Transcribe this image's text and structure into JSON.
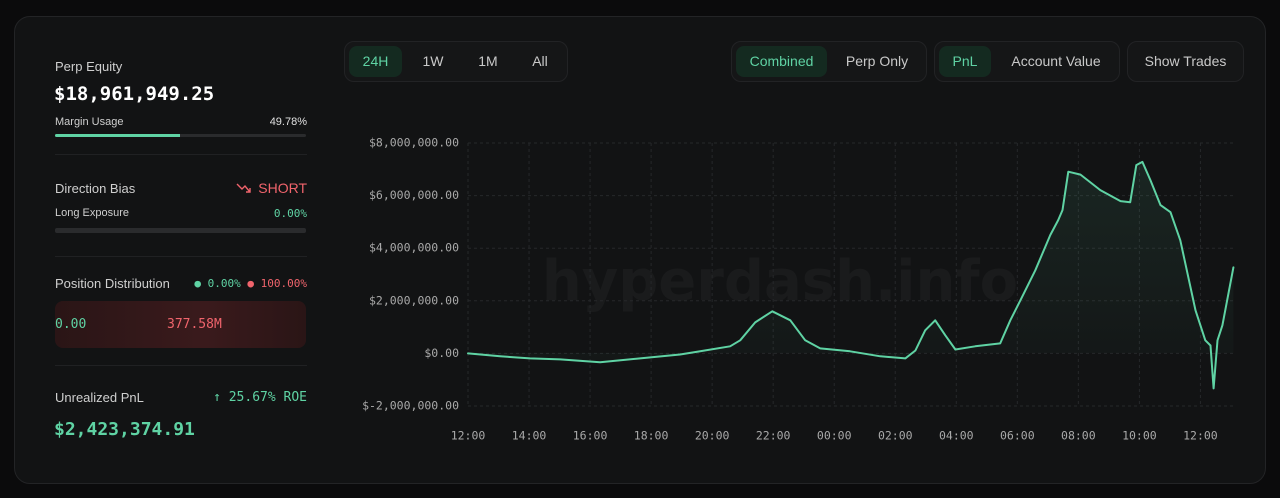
{
  "summary": {
    "equity_label": "Perp Equity",
    "equity_value": "$18,961,949.25",
    "margin_label": "Margin Usage",
    "margin_usage": {
      "value": 49.78,
      "label": "49.78%"
    },
    "bias_label": "Direction Bias",
    "bias_value": "SHORT",
    "long_exposure_label": "Long Exposure",
    "long_exposure": {
      "value": 0,
      "label": "0.00%"
    },
    "distribution_label": "Position Distribution",
    "long_share": {
      "value": 0,
      "label": "0.00%"
    },
    "short_share": {
      "value": 100,
      "label": "100.00%"
    },
    "long_amount": "0.00",
    "short_amount": "377.58M",
    "pnl_label": "Unrealized PnL",
    "roe": "25.67% ROE",
    "pnl_value": "$2,423,374.91"
  },
  "tabs": {
    "range": [
      "24H",
      "1W",
      "1M",
      "All"
    ],
    "scope": [
      "Combined",
      "Perp Only"
    ],
    "metric": [
      "PnL",
      "Account Value"
    ],
    "trades": "Show Trades"
  },
  "chart_data": {
    "type": "line",
    "watermark": "hyperdash.info",
    "color": "#5fd3a4",
    "grid": true,
    "x": [
      0,
      1.05,
      2.03,
      3.02,
      4.33,
      5.64,
      6.95,
      7.61,
      8.59,
      8.92,
      9.41,
      9.97,
      10.56,
      11.05,
      11.54,
      12.52,
      13.51,
      14.33,
      14.66,
      14.98,
      15.31,
      15.64,
      15.97,
      16.62,
      17.44,
      17.77,
      18.1,
      18.59,
      19.08,
      19.34,
      19.48,
      19.67,
      20.07,
      20.72,
      21.38,
      21.7,
      21.9,
      22.1,
      22.36,
      22.69,
      23.02,
      23.34,
      23.84,
      24.16,
      24.33,
      24.43,
      24.56,
      24.72,
      25.08
    ],
    "values": [
      0,
      -110000,
      -190000,
      -230000,
      -340000,
      -190000,
      -40000,
      80000,
      270000,
      500000,
      1180000,
      1600000,
      1260000,
      500000,
      190000,
      80000,
      -110000,
      -190000,
      110000,
      880000,
      1260000,
      690000,
      150000,
      270000,
      380000,
      1260000,
      2020000,
      3160000,
      4500000,
      5070000,
      5450000,
      6910000,
      6800000,
      6210000,
      5790000,
      5750000,
      7160000,
      7280000,
      6590000,
      5640000,
      5370000,
      4300000,
      1640000,
      500000,
      300000,
      -1330000,
      500000,
      1070000,
      3270000
    ],
    "xlim": [
      0,
      25.1
    ],
    "xticks": [
      {
        "value": 0,
        "label": "12:00"
      },
      {
        "value": 2,
        "label": "14:00"
      },
      {
        "value": 4,
        "label": "16:00"
      },
      {
        "value": 6,
        "label": "18:00"
      },
      {
        "value": 8,
        "label": "20:00"
      },
      {
        "value": 10,
        "label": "22:00"
      },
      {
        "value": 12,
        "label": "00:00"
      },
      {
        "value": 14,
        "label": "02:00"
      },
      {
        "value": 16,
        "label": "04:00"
      },
      {
        "value": 18,
        "label": "06:00"
      },
      {
        "value": 20,
        "label": "08:00"
      },
      {
        "value": 22,
        "label": "10:00"
      },
      {
        "value": 24,
        "label": "12:00"
      }
    ],
    "ylim": [
      -2000000,
      8000000
    ],
    "yticks": [
      {
        "value": -2000000,
        "label": "$-2,000,000.00"
      },
      {
        "value": 0,
        "label": "$0.00"
      },
      {
        "value": 2000000,
        "label": "$2,000,000.00"
      },
      {
        "value": 4000000,
        "label": "$4,000,000.00"
      },
      {
        "value": 6000000,
        "label": "$6,000,000.00"
      },
      {
        "value": 8000000,
        "label": "$8,000,000.00"
      }
    ]
  }
}
